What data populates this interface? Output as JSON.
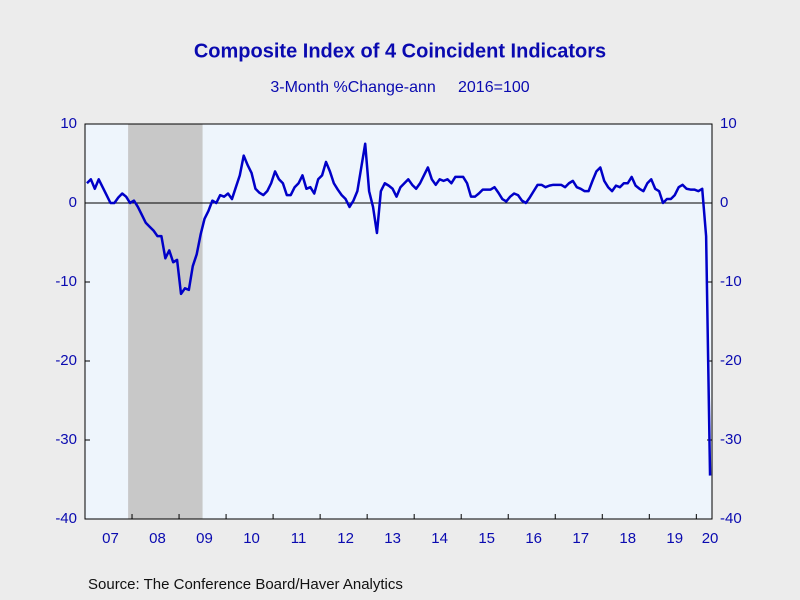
{
  "chart_data": {
    "type": "line",
    "title": "Composite Index of 4 Coincident Indicators",
    "subtitle": "3-Month %Change-ann     2016=100",
    "source": "Source:  The Conference Board/Haver Analytics",
    "categories": [
      null,
      null,
      null,
      null,
      null,
      null,
      "07",
      null,
      null,
      null,
      null,
      null,
      null,
      null,
      null,
      null,
      null,
      null,
      "08",
      null,
      null,
      null,
      null,
      null,
      null,
      null,
      null,
      null,
      null,
      null,
      "09",
      null,
      null,
      null,
      null,
      null,
      null,
      null,
      null,
      null,
      null,
      null,
      "10",
      null,
      null,
      null,
      null,
      null,
      null,
      null,
      null,
      null,
      null,
      null,
      "11",
      null,
      null,
      null,
      null,
      null,
      null,
      null,
      null,
      null,
      null,
      null,
      "12",
      null,
      null,
      null,
      null,
      null,
      null,
      null,
      null,
      null,
      null,
      null,
      "13",
      null,
      null,
      null,
      null,
      null,
      null,
      null,
      null,
      null,
      null,
      null,
      "14",
      null,
      null,
      null,
      null,
      null,
      null,
      null,
      null,
      null,
      null,
      null,
      "15",
      null,
      null,
      null,
      null,
      null,
      null,
      null,
      null,
      null,
      null,
      null,
      "16",
      null,
      null,
      null,
      null,
      null,
      null,
      null,
      null,
      null,
      null,
      null,
      "17",
      null,
      null,
      null,
      null,
      null,
      null,
      null,
      null,
      null,
      null,
      null,
      "18",
      null,
      null,
      null,
      null,
      null,
      null,
      null,
      null,
      null,
      null,
      null,
      "19",
      null,
      null,
      null,
      null,
      null,
      null,
      null,
      null,
      "20"
    ],
    "series": [
      {
        "color": "#0000c8",
        "values": [
          2.5,
          3,
          1.8,
          3,
          2,
          1,
          0,
          0,
          0.7,
          1.2,
          0.8,
          0,
          0.3,
          -0.5,
          -1.5,
          -2.5,
          -3,
          -3.5,
          -4.2,
          -4.2,
          -7,
          -6,
          -7.5,
          -7.2,
          -11.5,
          -10.8,
          -11,
          -8,
          -6.5,
          -4,
          -2,
          -1,
          0.3,
          0,
          1,
          0.8,
          1.2,
          0.5,
          2,
          3.5,
          6,
          4.8,
          3.8,
          1.8,
          1.3,
          1,
          1.5,
          2.5,
          4,
          3,
          2.5,
          1,
          1,
          2,
          2.5,
          3.5,
          1.8,
          2,
          1.2,
          3,
          3.5,
          5.2,
          4,
          2.5,
          1.7,
          1,
          0.5,
          -0.5,
          0.3,
          1.5,
          4.5,
          7.5,
          1.5,
          -0.5,
          -3.8,
          1.5,
          2.5,
          2.2,
          1.8,
          0.8,
          2,
          2.5,
          3,
          2.3,
          1.8,
          2.5,
          3.5,
          4.5,
          3,
          2.3,
          3,
          2.8,
          3,
          2.5,
          3.3,
          3.3,
          3.3,
          2.5,
          0.8,
          0.8,
          1.2,
          1.7,
          1.7,
          1.7,
          2,
          1.3,
          0.5,
          0.2,
          0.8,
          1.2,
          1,
          0.3,
          0,
          0.7,
          1.5,
          2.3,
          2.3,
          2,
          2.2,
          2.3,
          2.3,
          2.3,
          2,
          2.5,
          2.8,
          2,
          1.8,
          1.5,
          1.5,
          2.8,
          4,
          4.5,
          2.8,
          2,
          1.5,
          2.2,
          2,
          2.5,
          2.5,
          3.3,
          2.2,
          1.8,
          1.5,
          2.5,
          3,
          1.8,
          1.5,
          0,
          0.5,
          0.5,
          1,
          2,
          2.3,
          1.8,
          1.7,
          1.7,
          1.5,
          1.8,
          -4.2,
          -34.5
        ]
      }
    ],
    "shaded_ranges": [
      [
        11,
        29
      ]
    ],
    "ylim": [
      -40,
      10
    ],
    "yticks": [
      -40,
      -30,
      -20,
      -10,
      0,
      10
    ],
    "zero_line": true
  }
}
